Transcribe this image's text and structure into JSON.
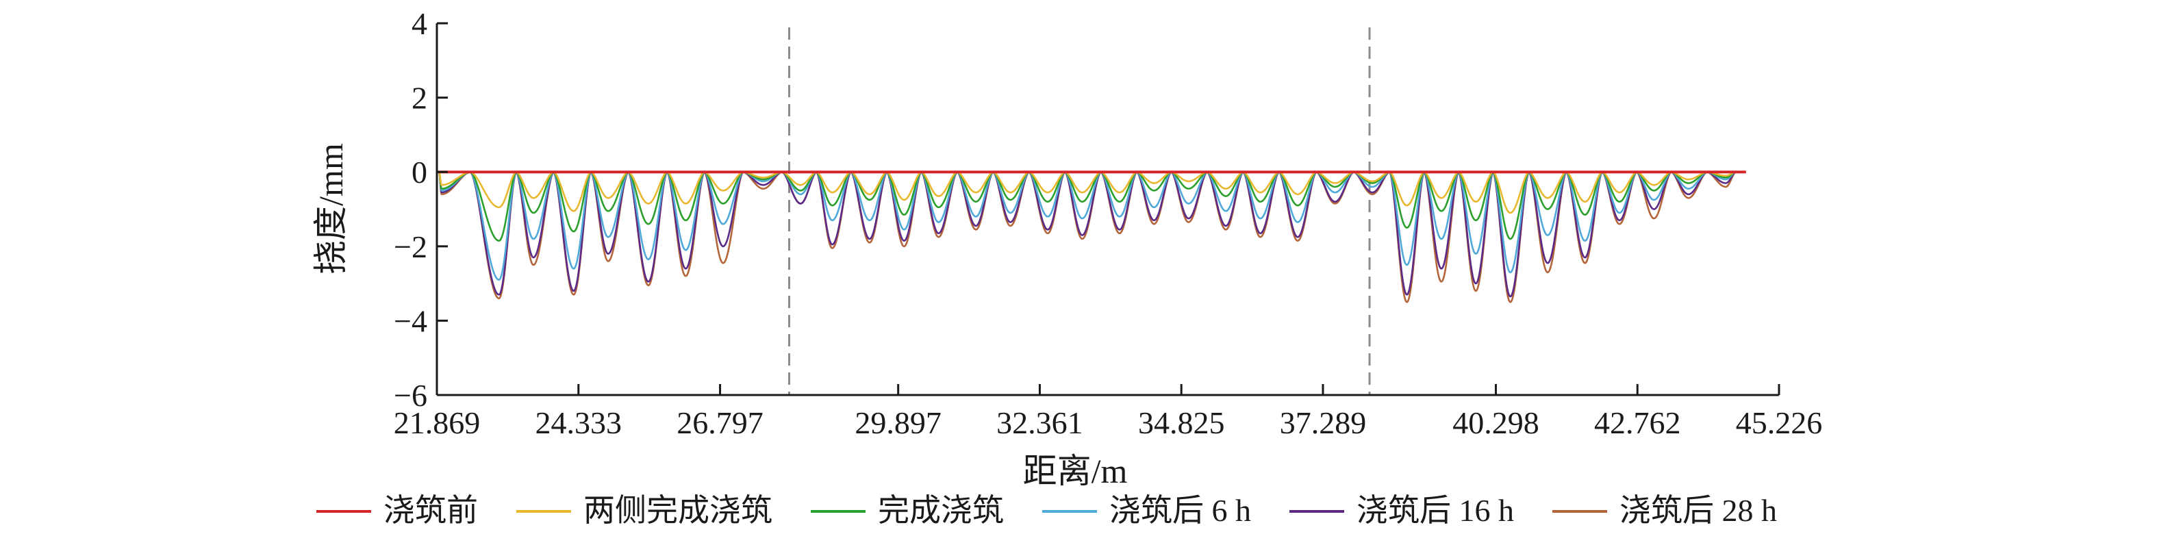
{
  "chart_data": {
    "type": "line",
    "title": "",
    "xlabel": "距离/m",
    "ylabel": "挠度/mm",
    "xlim": [
      21.869,
      45.226
    ],
    "ylim": [
      -6,
      4
    ],
    "x_ticks": [
      21.869,
      24.333,
      26.797,
      29.897,
      32.361,
      34.825,
      37.289,
      40.298,
      42.762,
      45.226
    ],
    "x_tick_labels": [
      "21.869",
      "24.333",
      "26.797",
      "29.897",
      "32.361",
      "34.825",
      "37.289",
      "40.298",
      "42.762",
      "45.226"
    ],
    "y_ticks": [
      4,
      2,
      0,
      -2,
      -4,
      -6
    ],
    "y_tick_labels": [
      "4",
      "2",
      "0",
      "−2",
      "−4",
      "−6"
    ],
    "grid": false,
    "legend_position": "bottom",
    "reference_lines_x": [
      28.0,
      38.1
    ],
    "reference_line_color": "#8c8c8c",
    "x_start": 21.869,
    "x_end": 44.65,
    "troughs": [
      {
        "x": 21.95,
        "values": [
          0,
          -0.35,
          -0.45,
          -0.5,
          -0.55,
          -0.6
        ]
      },
      {
        "x": 22.95,
        "values": [
          0,
          -0.95,
          -1.85,
          -2.9,
          -3.3,
          -3.4
        ]
      },
      {
        "x": 23.55,
        "values": [
          0,
          -0.7,
          -1.1,
          -1.8,
          -2.3,
          -2.5
        ]
      },
      {
        "x": 24.25,
        "values": [
          0,
          -1.05,
          -1.6,
          -2.6,
          -3.2,
          -3.3
        ]
      },
      {
        "x": 24.85,
        "values": [
          0,
          -0.7,
          -1.05,
          -1.75,
          -2.2,
          -2.4
        ]
      },
      {
        "x": 25.55,
        "values": [
          0,
          -0.85,
          -1.4,
          -2.35,
          -2.95,
          -3.05
        ]
      },
      {
        "x": 26.2,
        "values": [
          0,
          -0.85,
          -1.3,
          -2.1,
          -2.6,
          -2.8
        ]
      },
      {
        "x": 26.85,
        "values": [
          0,
          -0.5,
          -0.85,
          -1.4,
          -2.0,
          -2.45
        ]
      },
      {
        "x": 27.55,
        "values": [
          0,
          -0.15,
          -0.2,
          -0.25,
          -0.35,
          -0.45
        ]
      },
      {
        "x": 28.2,
        "values": [
          0,
          -0.35,
          -0.5,
          -0.6,
          -0.85,
          -0.85
        ]
      },
      {
        "x": 28.75,
        "values": [
          0,
          -0.55,
          -0.9,
          -1.3,
          -1.95,
          -2.05
        ]
      },
      {
        "x": 29.4,
        "values": [
          0,
          -0.6,
          -0.75,
          -1.3,
          -1.8,
          -1.9
        ]
      },
      {
        "x": 30.0,
        "values": [
          0,
          -0.75,
          -1.15,
          -1.55,
          -1.85,
          -2.0
        ]
      },
      {
        "x": 30.6,
        "values": [
          0,
          -0.65,
          -0.95,
          -1.35,
          -1.65,
          -1.75
        ]
      },
      {
        "x": 31.25,
        "values": [
          0,
          -0.55,
          -0.8,
          -1.2,
          -1.45,
          -1.55
        ]
      },
      {
        "x": 31.85,
        "values": [
          0,
          -0.55,
          -0.75,
          -1.1,
          -1.35,
          -1.45
        ]
      },
      {
        "x": 32.5,
        "values": [
          0,
          -0.55,
          -0.8,
          -1.2,
          -1.55,
          -1.65
        ]
      },
      {
        "x": 33.1,
        "values": [
          0,
          -0.55,
          -0.8,
          -1.25,
          -1.7,
          -1.8
        ]
      },
      {
        "x": 33.75,
        "values": [
          0,
          -0.55,
          -0.8,
          -1.2,
          -1.55,
          -1.65
        ]
      },
      {
        "x": 34.35,
        "values": [
          0,
          -0.3,
          -0.5,
          -0.95,
          -1.3,
          -1.4
        ]
      },
      {
        "x": 34.95,
        "values": [
          0,
          -0.25,
          -0.45,
          -0.85,
          -1.25,
          -1.35
        ]
      },
      {
        "x": 35.6,
        "values": [
          0,
          -0.45,
          -0.65,
          -1.05,
          -1.45,
          -1.55
        ]
      },
      {
        "x": 36.2,
        "values": [
          0,
          -0.55,
          -0.8,
          -1.25,
          -1.65,
          -1.75
        ]
      },
      {
        "x": 36.85,
        "values": [
          0,
          -0.6,
          -0.9,
          -1.35,
          -1.75,
          -1.85
        ]
      },
      {
        "x": 37.5,
        "values": [
          0,
          -0.3,
          -0.4,
          -0.55,
          -0.8,
          -0.85
        ]
      },
      {
        "x": 38.15,
        "values": [
          0,
          -0.25,
          -0.3,
          -0.4,
          -0.55,
          -0.6
        ]
      },
      {
        "x": 38.75,
        "values": [
          0,
          -0.9,
          -1.5,
          -2.5,
          -3.3,
          -3.5
        ]
      },
      {
        "x": 39.35,
        "values": [
          0,
          -0.7,
          -1.05,
          -1.8,
          -2.6,
          -2.95
        ]
      },
      {
        "x": 39.95,
        "values": [
          0,
          -0.8,
          -1.3,
          -2.2,
          -3.0,
          -3.2
        ]
      },
      {
        "x": 40.55,
        "values": [
          0,
          -1.1,
          -1.8,
          -2.7,
          -3.35,
          -3.5
        ]
      },
      {
        "x": 41.2,
        "values": [
          0,
          -0.7,
          -1.0,
          -1.7,
          -2.45,
          -2.7
        ]
      },
      {
        "x": 41.85,
        "values": [
          0,
          -0.8,
          -1.15,
          -1.85,
          -2.3,
          -2.45
        ]
      },
      {
        "x": 42.45,
        "values": [
          0,
          -0.55,
          -0.8,
          -1.1,
          -1.3,
          -1.4
        ]
      },
      {
        "x": 43.05,
        "values": [
          0,
          -0.35,
          -0.5,
          -0.75,
          -1.0,
          -1.25
        ]
      },
      {
        "x": 43.65,
        "values": [
          0,
          -0.2,
          -0.3,
          -0.45,
          -0.6,
          -0.7
        ]
      },
      {
        "x": 44.3,
        "values": [
          0,
          -0.1,
          -0.15,
          -0.2,
          -0.3,
          -0.4
        ]
      }
    ],
    "series": [
      {
        "name": "浇筑前",
        "color": "#d62728"
      },
      {
        "name": "两侧完成浇筑",
        "color": "#e8b830"
      },
      {
        "name": "完成浇筑",
        "color": "#2ca02c"
      },
      {
        "name": "浇筑后 6 h",
        "color": "#4fa9d9"
      },
      {
        "name": "浇筑后 16 h",
        "color": "#5b2a86"
      },
      {
        "name": "浇筑后 28 h",
        "color": "#b5653a"
      }
    ]
  }
}
